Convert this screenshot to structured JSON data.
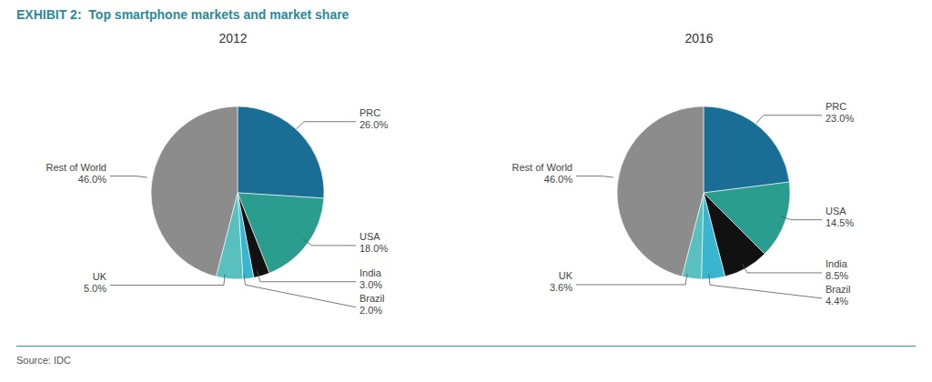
{
  "title": "EXHIBIT 2:  Top smartphone markets and market share",
  "annotations": [
    "Source: IDC"
  ],
  "chart_data": [
    {
      "type": "pie",
      "title": "2012",
      "categories": [
        "PRC",
        "USA",
        "India",
        "Brazil",
        "UK",
        "Rest of World"
      ],
      "values": [
        26.0,
        18.0,
        3.0,
        2.0,
        5.0,
        46.0
      ],
      "value_labels": [
        "26.0%",
        "18.0%",
        "3.0%",
        "2.0%",
        "5.0%",
        "46.0%"
      ],
      "colors": [
        "#1a6e96",
        "#2a9d8f",
        "#111111",
        "#3ab5d0",
        "#5abfbf",
        "#8c8c8c"
      ],
      "data_labels": true
    },
    {
      "type": "pie",
      "title": "2016",
      "categories": [
        "PRC",
        "USA",
        "India",
        "Brazil",
        "UK",
        "Rest of World"
      ],
      "values": [
        23.0,
        14.5,
        8.5,
        4.4,
        3.6,
        46.0
      ],
      "value_labels": [
        "23.0%",
        "14.5%",
        "8.5%",
        "4.4%",
        "3.6%",
        "46.0%"
      ],
      "colors": [
        "#1a6e96",
        "#2a9d8f",
        "#111111",
        "#3ab5d0",
        "#5abfbf",
        "#8c8c8c"
      ],
      "data_labels": true
    }
  ]
}
